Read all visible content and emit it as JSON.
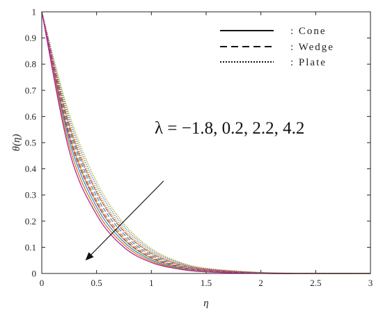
{
  "chart_data": {
    "type": "line",
    "xlabel": "η",
    "ylabel": "θ(η)",
    "xlim": [
      0,
      3
    ],
    "ylim": [
      0,
      1
    ],
    "x_ticks": [
      "0",
      "0.5",
      "1",
      "1.5",
      "2",
      "2.5",
      "3"
    ],
    "y_ticks": [
      "0",
      "0.1",
      "0.2",
      "0.3",
      "0.4",
      "0.5",
      "0.6",
      "0.7",
      "0.8",
      "0.9",
      "1"
    ],
    "x": [
      0,
      0.25,
      0.5,
      0.75,
      1.0,
      1.25,
      1.5,
      2.0,
      2.5,
      3.0
    ],
    "legend": [
      {
        "label": ": Cone",
        "style": "solid"
      },
      {
        "label": ": Wedge",
        "style": "dashed"
      },
      {
        "label": ": Plate",
        "style": "dotted"
      }
    ],
    "annotation": "λ = −1.8, 0.2, 2.2, 4.2",
    "lambda_colors": [
      "#b8a800",
      "#2b8fd1",
      "#e07a10",
      "#b0279e"
    ],
    "series": [
      {
        "geometry": "Cone",
        "lambda": -1.8,
        "values": [
          1.0,
          0.53,
          0.27,
          0.13,
          0.058,
          0.024,
          0.009,
          0.001,
          0.0,
          0.0
        ]
      },
      {
        "geometry": "Cone",
        "lambda": 0.2,
        "values": [
          1.0,
          0.51,
          0.255,
          0.12,
          0.052,
          0.021,
          0.008,
          0.001,
          0.0,
          0.0
        ]
      },
      {
        "geometry": "Cone",
        "lambda": 2.2,
        "values": [
          1.0,
          0.49,
          0.24,
          0.11,
          0.047,
          0.019,
          0.007,
          0.0005,
          0.0,
          0.0
        ]
      },
      {
        "geometry": "Cone",
        "lambda": 4.2,
        "values": [
          1.0,
          0.47,
          0.225,
          0.1,
          0.042,
          0.017,
          0.006,
          0.0004,
          0.0,
          0.0
        ]
      },
      {
        "geometry": "Wedge",
        "lambda": -1.8,
        "values": [
          1.0,
          0.57,
          0.31,
          0.16,
          0.076,
          0.034,
          0.014,
          0.002,
          0.0,
          0.0
        ]
      },
      {
        "geometry": "Wedge",
        "lambda": 0.2,
        "values": [
          1.0,
          0.555,
          0.295,
          0.15,
          0.07,
          0.031,
          0.013,
          0.002,
          0.0,
          0.0
        ]
      },
      {
        "geometry": "Wedge",
        "lambda": 2.2,
        "values": [
          1.0,
          0.54,
          0.28,
          0.14,
          0.065,
          0.028,
          0.012,
          0.0015,
          0.0,
          0.0
        ]
      },
      {
        "geometry": "Wedge",
        "lambda": 4.2,
        "values": [
          1.0,
          0.525,
          0.27,
          0.132,
          0.06,
          0.026,
          0.011,
          0.001,
          0.0,
          0.0
        ]
      },
      {
        "geometry": "Plate",
        "lambda": -1.8,
        "values": [
          1.0,
          0.61,
          0.35,
          0.19,
          0.095,
          0.045,
          0.02,
          0.004,
          0.0005,
          0.0
        ]
      },
      {
        "geometry": "Plate",
        "lambda": 0.2,
        "values": [
          1.0,
          0.595,
          0.335,
          0.18,
          0.089,
          0.042,
          0.018,
          0.0035,
          0.0004,
          0.0
        ]
      },
      {
        "geometry": "Plate",
        "lambda": 2.2,
        "values": [
          1.0,
          0.58,
          0.32,
          0.17,
          0.083,
          0.039,
          0.017,
          0.003,
          0.0003,
          0.0
        ]
      },
      {
        "geometry": "Plate",
        "lambda": 4.2,
        "values": [
          1.0,
          0.565,
          0.31,
          0.162,
          0.078,
          0.036,
          0.016,
          0.0025,
          0.0002,
          0.0
        ]
      }
    ]
  }
}
